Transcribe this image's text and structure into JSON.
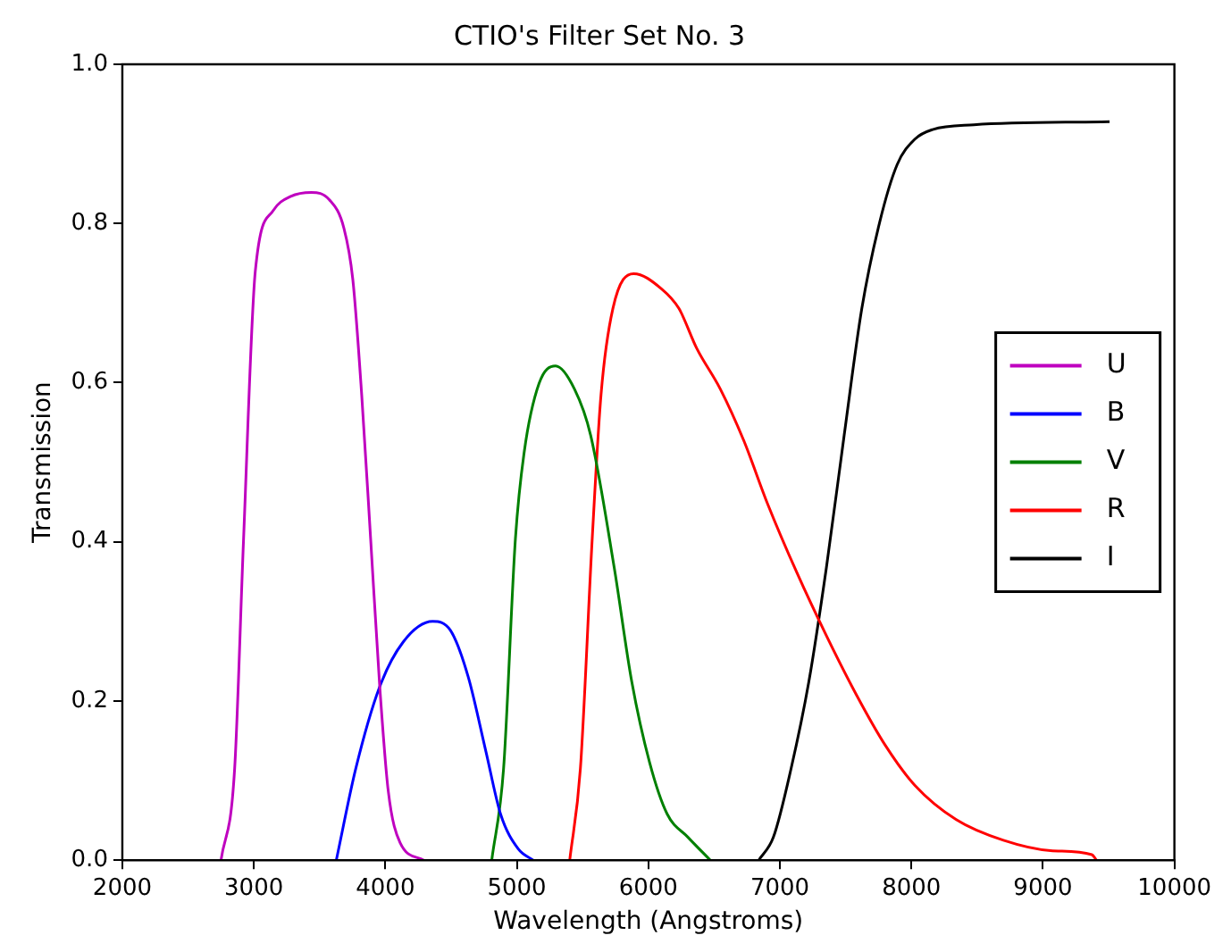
{
  "chart_data": {
    "type": "line",
    "title": "CTIO's Filter Set No. 3",
    "xlabel": "Wavelength (Angstroms)",
    "ylabel": "Transmission",
    "xlim": [
      2000,
      10000
    ],
    "xticks": [
      2000,
      3000,
      4000,
      5000,
      6000,
      7000,
      8000,
      9000,
      10000
    ],
    "ylim": [
      0,
      1
    ],
    "yticks": [
      {
        "value": 0,
        "label": "0.0"
      },
      0.2,
      0.4,
      0.6,
      0.8,
      {
        "value": 1,
        "label": "1.0"
      }
    ],
    "grid": false,
    "legend": "right",
    "marker": "none",
    "line_style": "solid",
    "series": [
      {
        "name": "U",
        "color": "#bf00bf",
        "x": [
          2750,
          2854,
          2921,
          3011,
          3146,
          3281,
          3438,
          3573,
          3685,
          3753,
          3820,
          3888,
          3955,
          4022,
          4112,
          4292
        ],
        "values": [
          0,
          0.115,
          0.4,
          0.74,
          0.816,
          0.834,
          0.839,
          0.83,
          0.794,
          0.729,
          0.585,
          0.404,
          0.224,
          0.087,
          0.022,
          0
        ]
      },
      {
        "name": "B",
        "color": "#0000ff",
        "x": [
          3627,
          3775,
          3955,
          4135,
          4360,
          4494,
          4629,
          4764,
          4876,
          5011,
          5124
        ],
        "values": [
          0,
          0.115,
          0.217,
          0.274,
          0.3,
          0.289,
          0.231,
          0.137,
          0.058,
          0.014,
          0
        ]
      },
      {
        "name": "V",
        "color": "#008000",
        "x": [
          4809,
          4899,
          4989,
          5056,
          5169,
          5294,
          5438,
          5561,
          5740,
          5874,
          6009,
          6143,
          6300,
          6471
        ],
        "values": [
          0,
          0.115,
          0.404,
          0.513,
          0.599,
          0.621,
          0.592,
          0.534,
          0.368,
          0.224,
          0.123,
          0.058,
          0.029,
          0
        ]
      },
      {
        "name": "R",
        "color": "#ff0000",
        "x": [
          5402,
          5483,
          5573,
          5640,
          5730,
          5888,
          6099,
          6233,
          6368,
          6547,
          6726,
          6906,
          7130,
          7354,
          7578,
          7803,
          8027,
          8341,
          8700,
          9058,
          9372,
          9408
        ],
        "values": [
          0,
          0.115,
          0.404,
          0.585,
          0.693,
          0.737,
          0.718,
          0.693,
          0.643,
          0.592,
          0.527,
          0.448,
          0.361,
          0.282,
          0.209,
          0.144,
          0.094,
          0.051,
          0.025,
          0.012,
          0.007,
          0
        ]
      },
      {
        "name": "I",
        "color": "#000000",
        "x": [
          6839,
          6951,
          7085,
          7220,
          7354,
          7489,
          7623,
          7758,
          7892,
          8027,
          8161,
          8475,
          9507
        ],
        "values": [
          0,
          0.029,
          0.115,
          0.224,
          0.368,
          0.534,
          0.693,
          0.801,
          0.874,
          0.906,
          0.918,
          0.924,
          0.928
        ]
      }
    ]
  }
}
